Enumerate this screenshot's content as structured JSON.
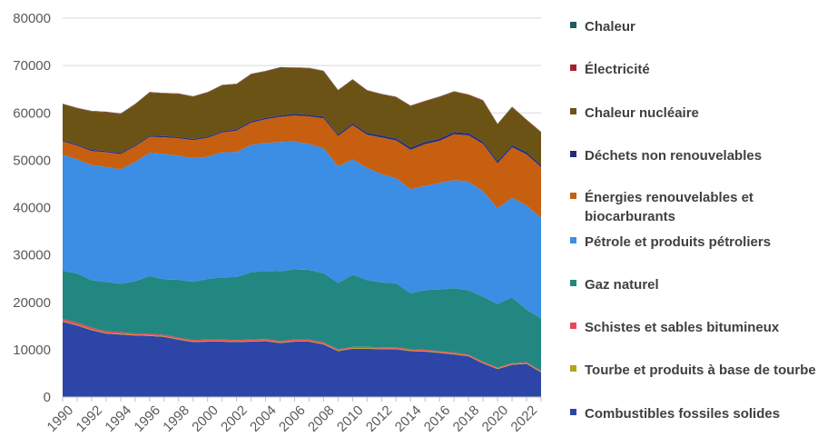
{
  "chart_data": {
    "type": "area",
    "stacked": true,
    "title": "",
    "xlabel": "",
    "ylabel": "",
    "ylim": [
      0,
      80000
    ],
    "yticks": [
      0,
      10000,
      20000,
      30000,
      40000,
      50000,
      60000,
      70000,
      80000
    ],
    "ytick_labels": [
      "0",
      "10000",
      "20000",
      "30000",
      "40000",
      "50000",
      "60000",
      "70000",
      "80000"
    ],
    "xtick_labels": [
      "1990",
      "1992",
      "1994",
      "1996",
      "1998",
      "2000",
      "2002",
      "2004",
      "2006",
      "2008",
      "2010",
      "2012",
      "2014",
      "2016",
      "2018",
      "2020",
      "2022"
    ],
    "grid": true,
    "legend_position": "right",
    "x": [
      1990,
      1991,
      1992,
      1993,
      1994,
      1995,
      1996,
      1997,
      1998,
      1999,
      2000,
      2001,
      2002,
      2003,
      2004,
      2005,
      2006,
      2007,
      2008,
      2009,
      2010,
      2011,
      2012,
      2013,
      2014,
      2015,
      2016,
      2017,
      2018,
      2019,
      2020,
      2021,
      2022,
      2023
    ],
    "series": [
      {
        "name": "Combustibles fossiles solides",
        "color": "#2e45a8",
        "values": [
          15900,
          15100,
          14100,
          13400,
          13200,
          13000,
          12900,
          12700,
          12100,
          11600,
          11700,
          11700,
          11600,
          11700,
          11800,
          11400,
          11700,
          11700,
          11100,
          9700,
          10200,
          10200,
          10100,
          10100,
          9700,
          9600,
          9300,
          9000,
          8600,
          7100,
          5900,
          6800,
          7000,
          5200
        ]
      },
      {
        "name": "Tourbe et produits à base de tourbe",
        "color": "#b5a41e",
        "values": [
          150,
          150,
          150,
          150,
          150,
          150,
          150,
          150,
          150,
          150,
          150,
          150,
          150,
          150,
          150,
          150,
          150,
          150,
          150,
          150,
          150,
          150,
          150,
          150,
          150,
          150,
          150,
          150,
          150,
          150,
          150,
          150,
          150,
          150
        ]
      },
      {
        "name": "Schistes et sables bitumineux",
        "color": "#e8485b",
        "values": [
          450,
          450,
          400,
          350,
          350,
          300,
          300,
          300,
          300,
          300,
          300,
          300,
          300,
          300,
          300,
          300,
          300,
          300,
          300,
          250,
          250,
          250,
          250,
          250,
          250,
          250,
          250,
          250,
          200,
          200,
          200,
          200,
          200,
          200
        ]
      },
      {
        "name": "Gaz naturel",
        "color": "#228781",
        "values": [
          10200,
          10400,
          10000,
          10400,
          10200,
          11000,
          12200,
          11700,
          12200,
          12300,
          12800,
          13100,
          13300,
          14200,
          14400,
          14700,
          14800,
          14700,
          14600,
          14000,
          15200,
          14100,
          13700,
          13500,
          11800,
          12600,
          13000,
          13600,
          13600,
          13700,
          13400,
          13900,
          11100,
          11100
        ]
      },
      {
        "name": "Pétrole et produits pétroliers",
        "color": "#3c8de4",
        "values": [
          24500,
          24100,
          24300,
          24300,
          24200,
          25200,
          26000,
          26500,
          26200,
          26100,
          25800,
          26400,
          26400,
          26900,
          27000,
          27300,
          27000,
          26600,
          26400,
          24600,
          24400,
          23700,
          22900,
          22200,
          22000,
          22000,
          22500,
          22800,
          22900,
          22300,
          20200,
          21000,
          22000,
          21200
        ]
      },
      {
        "name": "Énergies renouvelables et biocarburants",
        "color": "#c75f10",
        "values": [
          2800,
          2900,
          3000,
          3100,
          3200,
          3300,
          3400,
          3500,
          3700,
          3800,
          4000,
          4200,
          4500,
          4700,
          5000,
          5300,
          5500,
          5800,
          6300,
          6400,
          7200,
          7000,
          7700,
          8000,
          8300,
          8800,
          8900,
          9700,
          9800,
          10000,
          9500,
          10700,
          10800,
          10700
        ]
      },
      {
        "name": "Déchets non renouvelables",
        "color": "#1f2d80",
        "values": [
          250,
          250,
          250,
          250,
          250,
          250,
          250,
          250,
          250,
          250,
          250,
          250,
          300,
          300,
          300,
          300,
          350,
          350,
          350,
          350,
          400,
          400,
          400,
          400,
          450,
          450,
          450,
          450,
          450,
          450,
          450,
          450,
          450,
          450
        ]
      },
      {
        "name": "Chaleur nucléaire",
        "color": "#6b5316",
        "values": [
          7600,
          7600,
          8100,
          8200,
          8200,
          8600,
          9100,
          9000,
          9100,
          8900,
          9300,
          9700,
          9500,
          9900,
          9800,
          10100,
          9700,
          9800,
          9600,
          9300,
          9200,
          8900,
          8700,
          8700,
          8800,
          8600,
          8800,
          8500,
          8100,
          8700,
          7800,
          8000,
          6800,
          6900
        ]
      },
      {
        "name": "Électricité",
        "color": "#a5202f",
        "values": [
          80,
          80,
          80,
          80,
          80,
          80,
          80,
          80,
          80,
          80,
          80,
          80,
          80,
          80,
          80,
          80,
          80,
          80,
          80,
          80,
          80,
          80,
          80,
          80,
          80,
          80,
          80,
          80,
          80,
          80,
          80,
          80,
          80,
          80
        ]
      },
      {
        "name": "Chaleur",
        "color": "#1b5c5e",
        "values": [
          40,
          40,
          40,
          40,
          40,
          40,
          40,
          40,
          40,
          40,
          40,
          40,
          40,
          40,
          40,
          40,
          40,
          40,
          40,
          40,
          40,
          40,
          40,
          40,
          40,
          40,
          40,
          40,
          40,
          40,
          40,
          40,
          40,
          40
        ]
      }
    ]
  },
  "legend": {
    "items": [
      {
        "label": "Chaleur",
        "color": "#1b5c5e"
      },
      {
        "label": "Électricité",
        "color": "#a5202f"
      },
      {
        "label": "Chaleur nucléaire",
        "color": "#6b5316"
      },
      {
        "label": "Déchets non renouvelables",
        "color": "#1f2d80"
      },
      {
        "label": "Énergies renouvelables et biocarburants",
        "color": "#c75f10"
      },
      {
        "label": "Pétrole et produits pétroliers",
        "color": "#3c8de4"
      },
      {
        "label": "Gaz naturel",
        "color": "#228781"
      },
      {
        "label": "Schistes et sables bitumineux",
        "color": "#e8485b"
      },
      {
        "label": "Tourbe et produits à base de tourbe",
        "color": "#b5a41e"
      },
      {
        "label": "Combustibles fossiles solides",
        "color": "#2e45a8"
      }
    ]
  }
}
